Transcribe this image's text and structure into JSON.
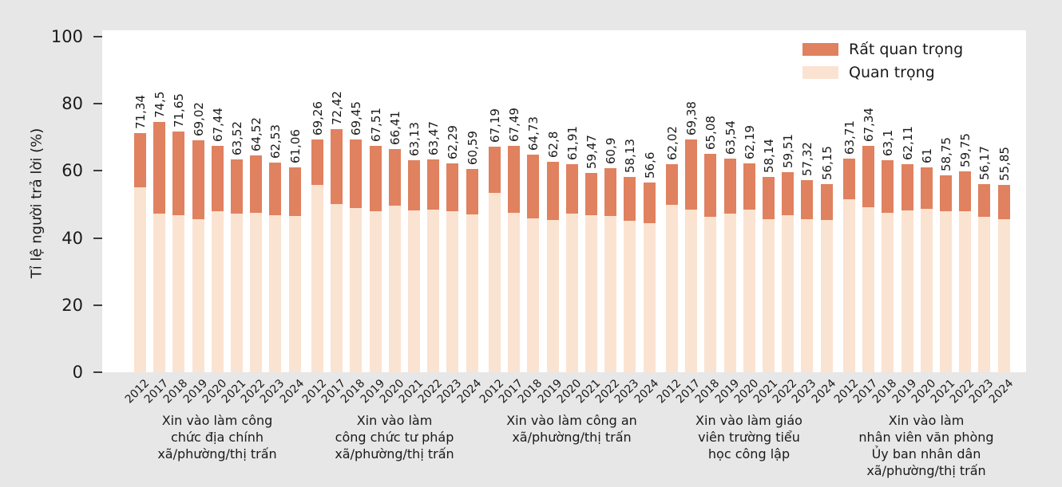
{
  "figure": {
    "background_color": "#e7e7e7",
    "panel_color": "#ffffff"
  },
  "chart_data": {
    "type": "bar",
    "stacked": true,
    "ylabel": "Tỉ lệ người trả lời (%)",
    "ylim": [
      0,
      100
    ],
    "yticks": [
      0,
      20,
      40,
      60,
      80,
      100
    ],
    "grid": false,
    "legend_position": "top-right",
    "legend": [
      {
        "name": "rat-quan-trong",
        "label": "Rất quan trọng",
        "color": "#e0815f"
      },
      {
        "name": "quan-trong",
        "label": "Quan trọng",
        "color": "#fbe3d1"
      }
    ],
    "categories": [
      "2012",
      "2017",
      "2018",
      "2019",
      "2020",
      "2021",
      "2022",
      "2023",
      "2024"
    ],
    "note": "totals = labeled combined percentage (Rất quan trọng + Quan trọng); quan_trong = bottom light segment estimated from gridlines; rất quan trọng = total - quan_trong",
    "groups": [
      {
        "label": "Xin vào làm công chức địa chính xã/phường/thị trấn",
        "label_lines": [
          "Xin vào làm công",
          "chức địa chính",
          "xã/phường/thị trấn"
        ],
        "totals": [
          71.34,
          74.5,
          71.65,
          69.02,
          67.44,
          63.52,
          64.52,
          62.53,
          61.06
        ],
        "total_labels": [
          "71,34",
          "74,5",
          "71,65",
          "69,02",
          "67,44",
          "63,52",
          "64,52",
          "62,53",
          "61,06"
        ],
        "quan_trong": [
          55.0,
          47.3,
          46.7,
          45.7,
          47.9,
          47.3,
          47.5,
          46.7,
          46.5
        ]
      },
      {
        "label": "Xin vào làm công chức tư pháp xã/phường/thị trấn",
        "label_lines": [
          "Xin vào làm",
          "công chức tư pháp",
          "xã/phường/thị trấn"
        ],
        "totals": [
          69.26,
          72.42,
          69.45,
          67.51,
          66.41,
          63.13,
          63.47,
          62.29,
          60.59
        ],
        "total_labels": [
          "69,26",
          "72,42",
          "69,45",
          "67,51",
          "66,41",
          "63,13",
          "63,47",
          "62,29",
          "60,59"
        ],
        "quan_trong": [
          55.9,
          50.0,
          49.0,
          47.9,
          49.7,
          48.3,
          48.5,
          48.0,
          47.1
        ]
      },
      {
        "label": "Xin vào làm công an xã/phường/thị trấn",
        "label_lines": [
          "Xin vào làm công an",
          "xã/phường/thị trấn"
        ],
        "totals": [
          67.19,
          67.49,
          64.73,
          62.8,
          61.91,
          59.47,
          60.9,
          58.13,
          56.6
        ],
        "total_labels": [
          "67,19",
          "67,49",
          "64,73",
          "62,8",
          "61,91",
          "59,47",
          "60,9",
          "58,13",
          "56,6"
        ],
        "quan_trong": [
          53.4,
          47.5,
          45.8,
          45.4,
          47.2,
          46.8,
          46.5,
          45.2,
          44.4
        ]
      },
      {
        "label": "Xin vào làm giáo viên trường tiểu học công lập",
        "label_lines": [
          "Xin vào làm giáo",
          "viên trường  tiểu",
          "học công lập"
        ],
        "totals": [
          62.02,
          69.38,
          65.08,
          63.54,
          62.19,
          58.14,
          59.51,
          57.32,
          56.15
        ],
        "total_labels": [
          "62,02",
          "69,38",
          "65,08",
          "63,54",
          "62,19",
          "58,14",
          "59,51",
          "57,32",
          "56,15"
        ],
        "quan_trong": [
          49.9,
          48.5,
          46.4,
          47.2,
          48.5,
          45.5,
          46.7,
          45.5,
          45.3
        ]
      },
      {
        "label": "Xin vào làm nhân viên văn phòng Ủy ban nhân dân xã/phường/thị trấn",
        "label_lines": [
          "Xin vào làm",
          "nhân viên văn phòng",
          "Ủy ban nhân dân",
          "xã/phường/thị trấn"
        ],
        "totals": [
          63.71,
          67.34,
          63.1,
          62.11,
          61.0,
          58.75,
          59.75,
          56.17,
          55.85
        ],
        "total_labels": [
          "63,71",
          "67,34",
          "63,1",
          "62,11",
          "61",
          "58,75",
          "59,75",
          "56,17",
          "55,85"
        ],
        "quan_trong": [
          51.5,
          49.1,
          47.6,
          48.1,
          48.7,
          47.9,
          48.0,
          46.3,
          45.5
        ]
      }
    ]
  }
}
